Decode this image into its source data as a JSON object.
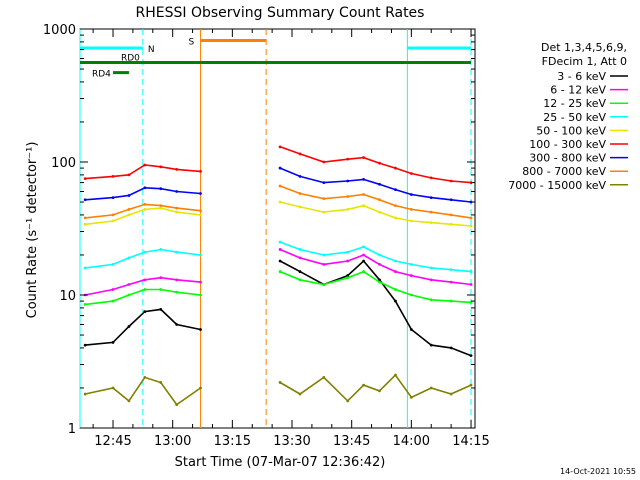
{
  "chart_data": {
    "type": "line",
    "title": "RHESSI Observing Summary Count Rates",
    "xlabel": "Start Time (07-Mar-07 12:36:42)",
    "ylabel": "Count Rate (s⁻¹ detector⁻¹)",
    "y_scale": "log",
    "ylim": [
      1,
      1000
    ],
    "xlim": [
      "12:36:42",
      "14:16:00"
    ],
    "x_ticks": [
      "12:45",
      "13:00",
      "13:15",
      "13:30",
      "13:45",
      "14:00",
      "14:15"
    ],
    "y_ticks": [
      "1",
      "10",
      "100",
      "1000"
    ],
    "legend_header": [
      "Det 1,3,4,5,6,9,",
      "FDecim 1, Att 0"
    ],
    "legend_position": "right",
    "footer_date": "14-Oct-2021 10:55",
    "data_gap": [
      "13:07",
      "13:24"
    ],
    "series": [
      {
        "name": "3 - 6 keV",
        "color": "#000000",
        "x": [
          "12:38",
          "12:45",
          "12:49",
          "12:53",
          "12:57",
          "13:01",
          "13:07",
          "13:24",
          "13:27",
          "13:32",
          "13:38",
          "13:44",
          "13:48",
          "13:52",
          "13:56",
          "14:00",
          "14:05",
          "14:10",
          "14:15"
        ],
        "values": [
          4.2,
          4.4,
          5.8,
          7.5,
          7.8,
          6.0,
          5.5,
          null,
          18,
          15,
          12,
          14,
          18,
          13,
          9,
          5.5,
          4.2,
          4.0,
          3.5
        ]
      },
      {
        "name": "6 - 12 keV",
        "color": "#ff00ff",
        "x": [
          "12:38",
          "12:45",
          "12:49",
          "12:53",
          "12:57",
          "13:01",
          "13:07",
          "13:24",
          "13:27",
          "13:32",
          "13:38",
          "13:44",
          "13:48",
          "13:52",
          "13:56",
          "14:00",
          "14:05",
          "14:10",
          "14:15"
        ],
        "values": [
          10,
          11,
          12,
          13,
          13.5,
          13,
          12.5,
          null,
          22,
          19,
          17,
          18,
          20,
          17,
          15,
          14,
          13,
          12.5,
          12
        ]
      },
      {
        "name": "12 - 25 keV",
        "color": "#00ff00",
        "x": [
          "12:38",
          "12:45",
          "12:49",
          "12:53",
          "12:57",
          "13:01",
          "13:07",
          "13:24",
          "13:27",
          "13:32",
          "13:38",
          "13:44",
          "13:48",
          "13:52",
          "13:56",
          "14:00",
          "14:05",
          "14:10",
          "14:15"
        ],
        "values": [
          8.5,
          9,
          10,
          11,
          11,
          10.5,
          10,
          null,
          15,
          13,
          12,
          13.5,
          15,
          12.5,
          11,
          10,
          9.2,
          9,
          8.8
        ]
      },
      {
        "name": "25 - 50 keV",
        "color": "#00ffff",
        "x": [
          "12:38",
          "12:45",
          "12:49",
          "12:53",
          "12:57",
          "13:01",
          "13:07",
          "13:24",
          "13:27",
          "13:32",
          "13:38",
          "13:44",
          "13:48",
          "13:52",
          "13:56",
          "14:00",
          "14:05",
          "14:10",
          "14:15"
        ],
        "values": [
          16,
          17,
          19,
          21,
          22,
          21,
          20,
          null,
          25,
          22,
          20,
          21,
          23,
          20,
          18,
          17,
          16,
          15.5,
          15
        ]
      },
      {
        "name": "50 - 100 keV",
        "color": "#e6e600",
        "x": [
          "12:38",
          "12:45",
          "12:49",
          "12:53",
          "12:57",
          "13:01",
          "13:07",
          "13:24",
          "13:27",
          "13:32",
          "13:38",
          "13:44",
          "13:48",
          "13:52",
          "13:56",
          "14:00",
          "14:05",
          "14:10",
          "14:15"
        ],
        "values": [
          34,
          36,
          40,
          44,
          45,
          42,
          40,
          null,
          50,
          46,
          42,
          44,
          47,
          42,
          38,
          36,
          35,
          34,
          33
        ]
      },
      {
        "name": "100 - 300 keV",
        "color": "#ff0000",
        "x": [
          "12:38",
          "12:45",
          "12:49",
          "12:53",
          "12:57",
          "13:01",
          "13:07",
          "13:24",
          "13:27",
          "13:32",
          "13:38",
          "13:44",
          "13:48",
          "13:52",
          "13:56",
          "14:00",
          "14:05",
          "14:10",
          "14:15"
        ],
        "values": [
          75,
          78,
          80,
          95,
          92,
          88,
          85,
          null,
          130,
          115,
          100,
          105,
          108,
          98,
          90,
          82,
          76,
          72,
          70
        ]
      },
      {
        "name": "300 - 800 keV",
        "color": "#0000ff",
        "x": [
          "12:38",
          "12:45",
          "12:49",
          "12:53",
          "12:57",
          "13:01",
          "13:07",
          "13:24",
          "13:27",
          "13:32",
          "13:38",
          "13:44",
          "13:48",
          "13:52",
          "13:56",
          "14:00",
          "14:05",
          "14:10",
          "14:15"
        ],
        "values": [
          52,
          54,
          56,
          64,
          63,
          60,
          58,
          null,
          90,
          78,
          70,
          72,
          74,
          68,
          62,
          57,
          54,
          52,
          50
        ]
      },
      {
        "name": "800 - 7000 keV",
        "color": "#ff8000",
        "x": [
          "12:38",
          "12:45",
          "12:49",
          "12:53",
          "12:57",
          "13:01",
          "13:07",
          "13:24",
          "13:27",
          "13:32",
          "13:38",
          "13:44",
          "13:48",
          "13:52",
          "13:56",
          "14:00",
          "14:05",
          "14:10",
          "14:15"
        ],
        "values": [
          38,
          40,
          44,
          48,
          47,
          45,
          43,
          null,
          66,
          58,
          53,
          55,
          57,
          52,
          47,
          44,
          42,
          40,
          38
        ]
      },
      {
        "name": "7000 - 15000 keV",
        "color": "#808000",
        "x": [
          "12:38",
          "12:45",
          "12:49",
          "12:53",
          "12:57",
          "13:01",
          "13:07",
          "13:24",
          "13:27",
          "13:32",
          "13:38",
          "13:44",
          "13:48",
          "13:52",
          "13:56",
          "14:00",
          "14:05",
          "14:10",
          "14:15"
        ],
        "values": [
          1.8,
          2.0,
          1.6,
          2.4,
          2.2,
          1.5,
          2.0,
          null,
          2.2,
          1.8,
          2.4,
          1.6,
          2.1,
          1.9,
          2.5,
          1.7,
          2.0,
          1.8,
          2.1
        ]
      }
    ],
    "vertical_lines": [
      {
        "time": "12:36:42",
        "color": "#00ffff",
        "style": "solid"
      },
      {
        "time": "12:52:30",
        "color": "#00ffff",
        "style": "dashed"
      },
      {
        "time": "13:07:00",
        "color": "#ff8000",
        "style": "solid"
      },
      {
        "time": "13:23:30",
        "color": "#ff8000",
        "style": "dashed"
      },
      {
        "time": "13:59:00",
        "color": "#00ffff",
        "style": "solid"
      },
      {
        "time": "14:15:00",
        "color": "#00ffff",
        "style": "dashed"
      }
    ],
    "flag_bars": [
      {
        "label": "N",
        "color": "#00ffff",
        "segments": [
          [
            "12:36:42",
            "12:52:30"
          ],
          [
            "13:59:00",
            "14:15:00"
          ]
        ],
        "level": 720
      },
      {
        "label": "S",
        "color": "#ff8000",
        "segments": [
          [
            "13:07:00",
            "13:23:30"
          ]
        ],
        "level": 820
      },
      {
        "label": "RD0",
        "color": "#008000",
        "segments": [
          [
            "12:36:42",
            "14:15:00"
          ]
        ],
        "level": 560
      },
      {
        "label": "RD4",
        "color": "#008000",
        "segments": [
          [
            "12:45:00",
            "12:49:00"
          ]
        ],
        "level": 470
      }
    ]
  }
}
